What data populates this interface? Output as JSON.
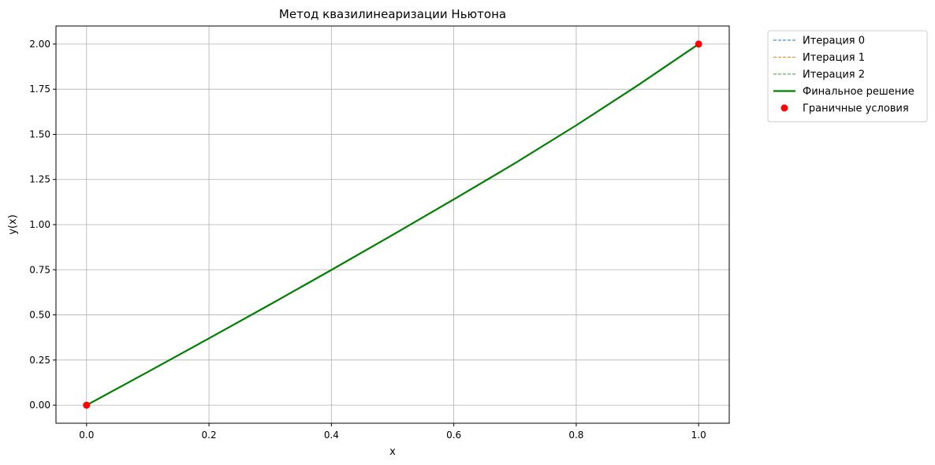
{
  "chart_data": {
    "type": "line",
    "title": "Метод квазилинеаризации Ньютона",
    "xlabel": "x",
    "ylabel": "y(x)",
    "xlim": [
      -0.05,
      1.05
    ],
    "ylim": [
      -0.1,
      2.1
    ],
    "xticks": [
      0.0,
      0.2,
      0.4,
      0.6,
      0.8,
      1.0
    ],
    "xtick_labels": [
      "0.0",
      "0.2",
      "0.4",
      "0.6",
      "0.8",
      "1.0"
    ],
    "yticks": [
      0.0,
      0.25,
      0.5,
      0.75,
      1.0,
      1.25,
      1.5,
      1.75,
      2.0
    ],
    "ytick_labels": [
      "0.00",
      "0.25",
      "0.50",
      "0.75",
      "1.00",
      "1.25",
      "1.50",
      "1.75",
      "2.00"
    ],
    "grid": true,
    "legend_position": "outside-right",
    "series": [
      {
        "name": "Итерация 0",
        "style": "dashed",
        "color": "#1f77b4",
        "x": [
          0.0,
          0.1,
          0.2,
          0.3,
          0.4,
          0.5,
          0.6,
          0.7,
          0.8,
          0.9,
          1.0
        ],
        "y": [
          0.0,
          0.184,
          0.37,
          0.558,
          0.749,
          0.943,
          1.14,
          1.34,
          1.55,
          1.77,
          2.0
        ]
      },
      {
        "name": "Итерация 1",
        "style": "dashed",
        "color": "#ff7f0e",
        "x": [
          0.0,
          0.1,
          0.2,
          0.3,
          0.4,
          0.5,
          0.6,
          0.7,
          0.8,
          0.9,
          1.0
        ],
        "y": [
          0.0,
          0.184,
          0.37,
          0.558,
          0.749,
          0.943,
          1.14,
          1.34,
          1.55,
          1.77,
          2.0
        ]
      },
      {
        "name": "Итерация 2",
        "style": "dashed",
        "color": "#2ca02c",
        "x": [
          0.0,
          0.1,
          0.2,
          0.3,
          0.4,
          0.5,
          0.6,
          0.7,
          0.8,
          0.9,
          1.0
        ],
        "y": [
          0.0,
          0.184,
          0.37,
          0.558,
          0.749,
          0.943,
          1.14,
          1.34,
          1.55,
          1.77,
          2.0
        ]
      },
      {
        "name": "Финальное решение",
        "style": "solid",
        "color": "#008000",
        "x": [
          0.0,
          0.1,
          0.2,
          0.3,
          0.4,
          0.5,
          0.6,
          0.7,
          0.8,
          0.9,
          1.0
        ],
        "y": [
          0.0,
          0.184,
          0.37,
          0.558,
          0.749,
          0.943,
          1.14,
          1.34,
          1.55,
          1.77,
          2.0
        ]
      }
    ],
    "points": {
      "name": "Граничные условия",
      "color": "#ff0000",
      "x": [
        0.0,
        1.0
      ],
      "y": [
        0.0,
        2.0
      ]
    }
  }
}
